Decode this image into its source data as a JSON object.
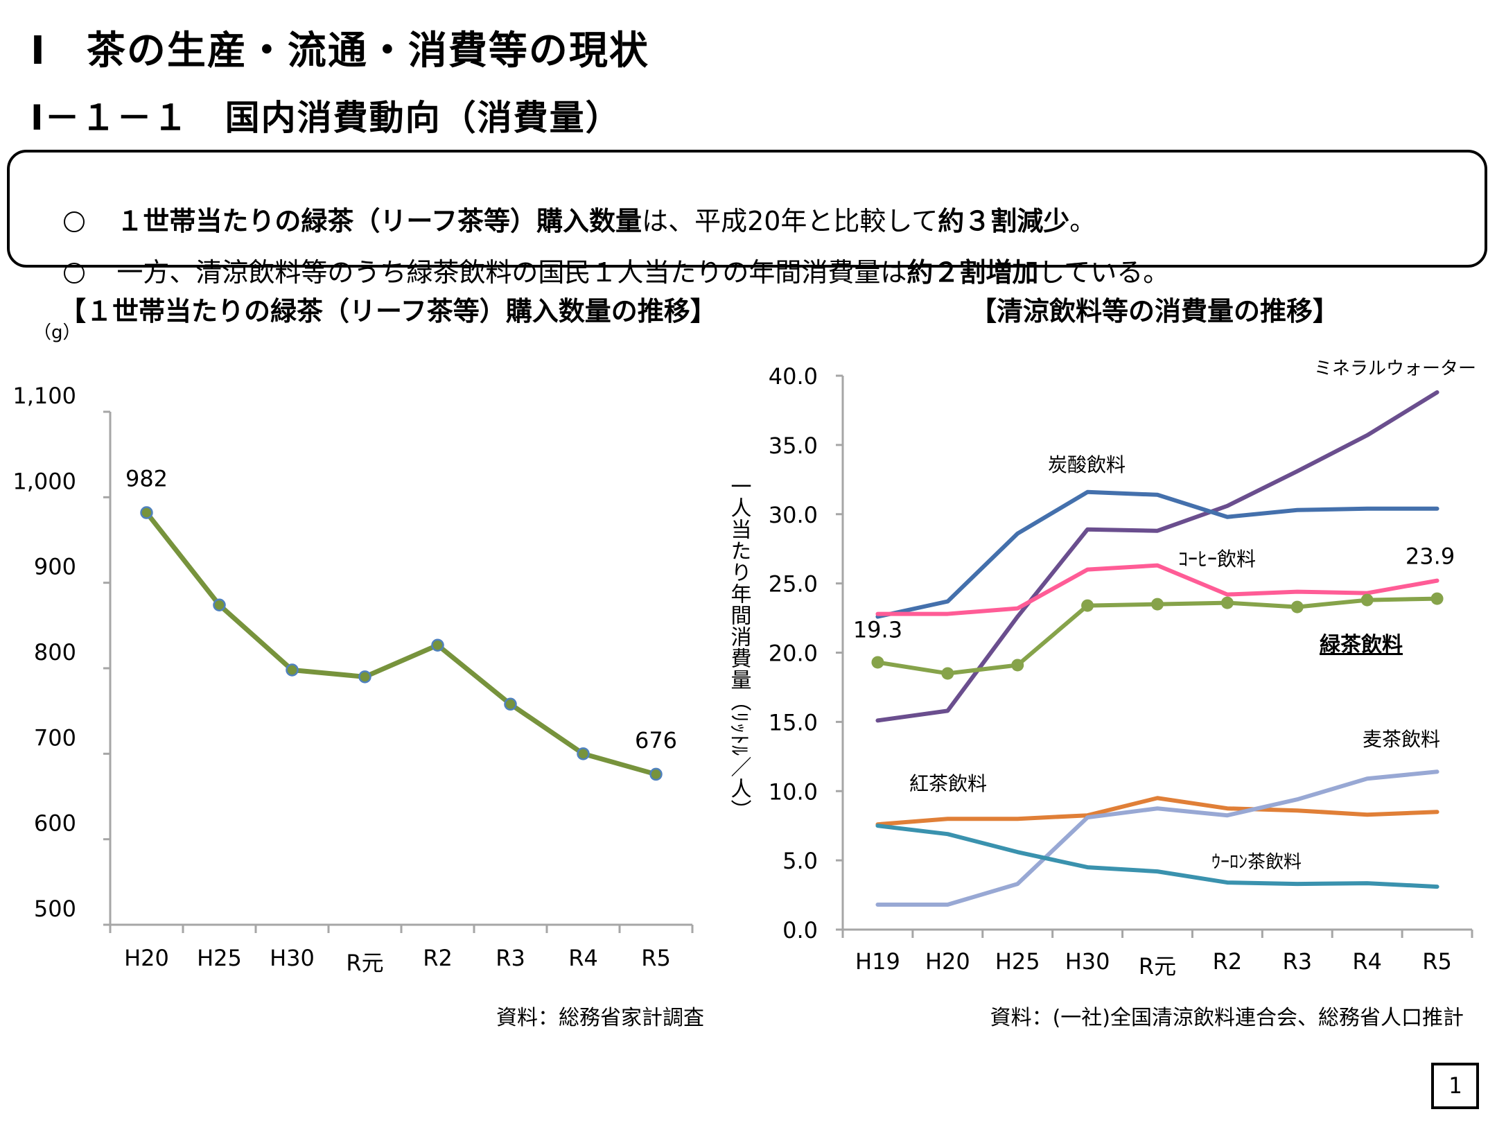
{
  "header": {
    "title": "Ⅰ　茶の生産・流通・消費等の現状",
    "subtitle": "Ⅰ－１－１　国内消費動向（消費量）"
  },
  "summary": {
    "line1": [
      {
        "text": "１世帯当たりの緑茶（リーフ茶等）購入数量",
        "bold": true
      },
      {
        "text": "は、平成20年と比較して",
        "bold": false
      },
      {
        "text": "約３割減少",
        "bold": true
      },
      {
        "text": "。",
        "bold": false
      }
    ],
    "line2": [
      {
        "text": "一方、清涼飲料等のうち緑茶飲料の国民１人当たりの年間消費量は",
        "bold": false
      },
      {
        "text": "約２割増加",
        "bold": true
      },
      {
        "text": "している。",
        "bold": false
      }
    ]
  },
  "page_number": "1",
  "chart_data": [
    {
      "type": "line",
      "title": "【１世帯当たりの緑茶（リーフ茶等）購入数量の推移】",
      "unit_label": "（g）",
      "xlabel": "",
      "ylabel": "",
      "categories": [
        "H20",
        "H25",
        "H30",
        "R元",
        "R2",
        "R3",
        "R4",
        "R5"
      ],
      "series": [
        {
          "name": "緑茶（リーフ茶等）購入数量",
          "values": [
            982,
            874,
            798,
            790,
            827,
            758,
            700,
            676
          ],
          "color": "#77933C",
          "marker_edge": "#4F81BD"
        }
      ],
      "data_labels": [
        {
          "index": 0,
          "text": "982"
        },
        {
          "index": 7,
          "text": "676"
        }
      ],
      "ylim": [
        500,
        1100
      ],
      "yticks": [
        500,
        600,
        700,
        800,
        900,
        1000,
        1100
      ],
      "ytick_labels": [
        "500",
        "600",
        "700",
        "800",
        "900",
        "1,000",
        "1,100"
      ],
      "grid": false,
      "source": "資料：総務省家計調査"
    },
    {
      "type": "line",
      "title": "【清涼飲料等の消費量の推移】",
      "xlabel": "",
      "ylabel": "一人当たり年間消費量（ﾘｯﾄﾙ／人）",
      "categories": [
        "H19",
        "H20",
        "H25",
        "H30",
        "R元",
        "R2",
        "R3",
        "R4",
        "R5"
      ],
      "series": [
        {
          "name": "ミネラルウォーター",
          "values": [
            15.1,
            15.8,
            22.6,
            28.9,
            28.8,
            30.6,
            33.1,
            35.7,
            38.8
          ],
          "color": "#6A4E8E"
        },
        {
          "name": "炭酸飲料",
          "values": [
            22.6,
            23.7,
            28.6,
            31.6,
            31.4,
            29.8,
            30.3,
            30.4,
            30.4
          ],
          "color": "#4470AC"
        },
        {
          "name": "コーヒー飲料",
          "values": [
            22.8,
            22.8,
            23.2,
            26.0,
            26.3,
            24.2,
            24.4,
            24.3,
            25.2
          ],
          "color": "#FF5C96"
        },
        {
          "name": "緑茶飲料",
          "values": [
            19.3,
            18.5,
            19.1,
            23.4,
            23.5,
            23.6,
            23.3,
            23.8,
            23.9
          ],
          "color": "#86A34A",
          "markers": true
        },
        {
          "name": "紅茶飲料",
          "values": [
            7.6,
            8.0,
            8.0,
            8.25,
            9.5,
            8.75,
            8.6,
            8.3,
            8.5
          ],
          "color": "#E07F37"
        },
        {
          "name": "麦茶飲料",
          "values": [
            1.8,
            1.8,
            3.3,
            8.1,
            8.75,
            8.25,
            9.4,
            10.9,
            11.4
          ],
          "color": "#98A8D4"
        },
        {
          "name": "ウーロン茶飲料",
          "values": [
            7.5,
            6.9,
            5.6,
            4.5,
            4.2,
            3.4,
            3.3,
            3.35,
            3.1
          ],
          "color": "#3A92AE"
        }
      ],
      "series_labels": [
        {
          "text": "ミネラルウォーター",
          "bold": false,
          "underline": false
        },
        {
          "text": "炭酸飲料",
          "bold": false,
          "underline": false
        },
        {
          "text": "ｺｰﾋｰ飲料",
          "bold": false,
          "underline": false
        },
        {
          "text": "緑茶飲料",
          "bold": true,
          "underline": true
        },
        {
          "text": "紅茶飲料",
          "bold": false,
          "underline": false
        },
        {
          "text": "麦茶飲料",
          "bold": false,
          "underline": false
        },
        {
          "text": "ｳｰﾛﾝ茶飲料",
          "bold": false,
          "underline": false
        }
      ],
      "data_labels": [
        {
          "series": 3,
          "index": 0,
          "text": "19.3"
        },
        {
          "series": 3,
          "index": 8,
          "text": "23.9"
        }
      ],
      "ylim": [
        0,
        40
      ],
      "yticks": [
        0,
        5,
        10,
        15,
        20,
        25,
        30,
        35,
        40
      ],
      "ytick_labels": [
        "0.0",
        "5.0",
        "10.0",
        "15.0",
        "20.0",
        "25.0",
        "30.0",
        "35.0",
        "40.0"
      ],
      "grid": false,
      "source": "資料：(一社)全国清涼飲料連合会、総務省人口推計"
    }
  ]
}
